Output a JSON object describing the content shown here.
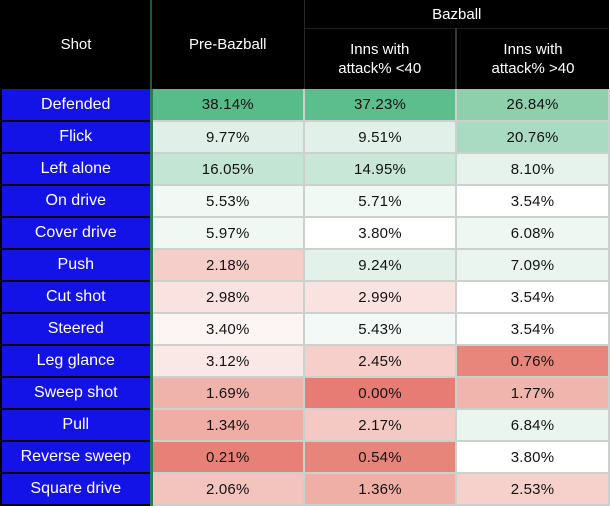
{
  "header": {
    "shot": "Shot",
    "pre_bazball": "Pre-Bazball",
    "bazball_group": "Bazball",
    "sub_lt40": {
      "line1": "Inns with",
      "line2": "attack% <40"
    },
    "sub_gt40": {
      "line1": "Inns with",
      "line2": "attack% >40"
    }
  },
  "colors": {
    "header_bg": "#000000",
    "header_text": "#FFFFFF",
    "row_label_bg": "#1313E8",
    "row_label_text": "#FFFFFF",
    "grid_line": "#CBD1CD",
    "label_divider_green": "#2C7C50",
    "scale_min_red": "#E67C73",
    "scale_mid_white": "#FFFFFF",
    "scale_max_green": "#57BB8A"
  },
  "table": {
    "rows": [
      {
        "label": "Defended",
        "cells": [
          {
            "text": "38.14%",
            "bg": "#57BB8A"
          },
          {
            "text": "37.23%",
            "bg": "#5CBD8D"
          },
          {
            "text": "26.84%",
            "bg": "#8ECFAC"
          }
        ]
      },
      {
        "label": "Flick",
        "cells": [
          {
            "text": "9.77%",
            "bg": "#E0F0E8"
          },
          {
            "text": "9.51%",
            "bg": "#E1F1E9"
          },
          {
            "text": "20.76%",
            "bg": "#A9DBC2"
          }
        ]
      },
      {
        "label": "Left alone",
        "cells": [
          {
            "text": "16.05%",
            "bg": "#C3E5D3"
          },
          {
            "text": "14.95%",
            "bg": "#C8E7D6"
          },
          {
            "text": "8.10%",
            "bg": "#E6F3EC"
          }
        ]
      },
      {
        "label": "On drive",
        "cells": [
          {
            "text": "5.53%",
            "bg": "#F2F9F5"
          },
          {
            "text": "5.71%",
            "bg": "#F1F9F5"
          },
          {
            "text": "3.54%",
            "bg": "#FFFFFF"
          }
        ]
      },
      {
        "label": "Cover drive",
        "cells": [
          {
            "text": "5.97%",
            "bg": "#F0F8F4"
          },
          {
            "text": "3.80%",
            "bg": "#FFFFFF"
          },
          {
            "text": "6.08%",
            "bg": "#EFF7F2"
          }
        ]
      },
      {
        "label": "Push",
        "cells": [
          {
            "text": "2.18%",
            "bg": "#F5CDC9"
          },
          {
            "text": "9.24%",
            "bg": "#E2F1E9"
          },
          {
            "text": "7.09%",
            "bg": "#EAF5EF"
          }
        ]
      },
      {
        "label": "Cut shot",
        "cells": [
          {
            "text": "2.98%",
            "bg": "#F9E2DF"
          },
          {
            "text": "2.99%",
            "bg": "#F9E2DF"
          },
          {
            "text": "3.54%",
            "bg": "#FFFFFF"
          }
        ]
      },
      {
        "label": "Steered",
        "cells": [
          {
            "text": "3.40%",
            "bg": "#FDF5F4"
          },
          {
            "text": "5.43%",
            "bg": "#F2F9F6"
          },
          {
            "text": "3.54%",
            "bg": "#FFFFFF"
          }
        ]
      },
      {
        "label": "Leg glance",
        "cells": [
          {
            "text": "3.12%",
            "bg": "#FAE8E6"
          },
          {
            "text": "2.45%",
            "bg": "#F6CFCA"
          },
          {
            "text": "0.76%",
            "bg": "#E8867C"
          }
        ]
      },
      {
        "label": "Sweep shot",
        "cells": [
          {
            "text": "1.69%",
            "bg": "#F0B3AB"
          },
          {
            "text": "0.00%",
            "bg": "#E67C73"
          },
          {
            "text": "1.77%",
            "bg": "#F0B6AE"
          }
        ]
      },
      {
        "label": "Pull",
        "cells": [
          {
            "text": "1.34%",
            "bg": "#EFADA5"
          },
          {
            "text": "2.17%",
            "bg": "#F4C8C3"
          },
          {
            "text": "6.84%",
            "bg": "#EBF5EF"
          }
        ]
      },
      {
        "label": "Reverse sweep",
        "cells": [
          {
            "text": "0.21%",
            "bg": "#E78076"
          },
          {
            "text": "0.54%",
            "bg": "#E8857B"
          },
          {
            "text": "3.80%",
            "bg": "#FFFFFF"
          }
        ]
      },
      {
        "label": "Square drive",
        "cells": [
          {
            "text": "2.06%",
            "bg": "#F3C3BD"
          },
          {
            "text": "1.36%",
            "bg": "#EFAEA6"
          },
          {
            "text": "2.53%",
            "bg": "#F6D1CC"
          }
        ]
      }
    ]
  },
  "chart_data": {
    "type": "heatmap",
    "title": "Shot selection percentages: Pre-Bazball vs Bazball",
    "row_header": "Shot",
    "column_group": "Bazball",
    "columns": [
      "Pre-Bazball",
      "Bazball — Inns with attack% <40",
      "Bazball — Inns with attack% >40"
    ],
    "rows": [
      "Defended",
      "Flick",
      "Left alone",
      "On drive",
      "Cover drive",
      "Push",
      "Cut shot",
      "Steered",
      "Leg glance",
      "Sweep shot",
      "Pull",
      "Reverse sweep",
      "Square drive"
    ],
    "values_percent": [
      [
        38.14,
        37.23,
        26.84
      ],
      [
        9.77,
        9.51,
        20.76
      ],
      [
        16.05,
        14.95,
        8.1
      ],
      [
        5.53,
        5.71,
        3.54
      ],
      [
        5.97,
        3.8,
        6.08
      ],
      [
        2.18,
        9.24,
        7.09
      ],
      [
        2.98,
        2.99,
        3.54
      ],
      [
        3.4,
        5.43,
        3.54
      ],
      [
        3.12,
        2.45,
        0.76
      ],
      [
        1.69,
        0.0,
        1.77
      ],
      [
        1.34,
        2.17,
        6.84
      ],
      [
        0.21,
        0.54,
        3.8
      ],
      [
        2.06,
        1.36,
        2.53
      ]
    ],
    "value_format": "percent, 2 decimals",
    "color_scale": {
      "min": "#E67C73",
      "mid": "#FFFFFF",
      "max": "#57BB8A",
      "min_value": 0.0,
      "mid_value": 3.54,
      "max_value": 38.14
    },
    "legend": "none",
    "grid": true
  }
}
